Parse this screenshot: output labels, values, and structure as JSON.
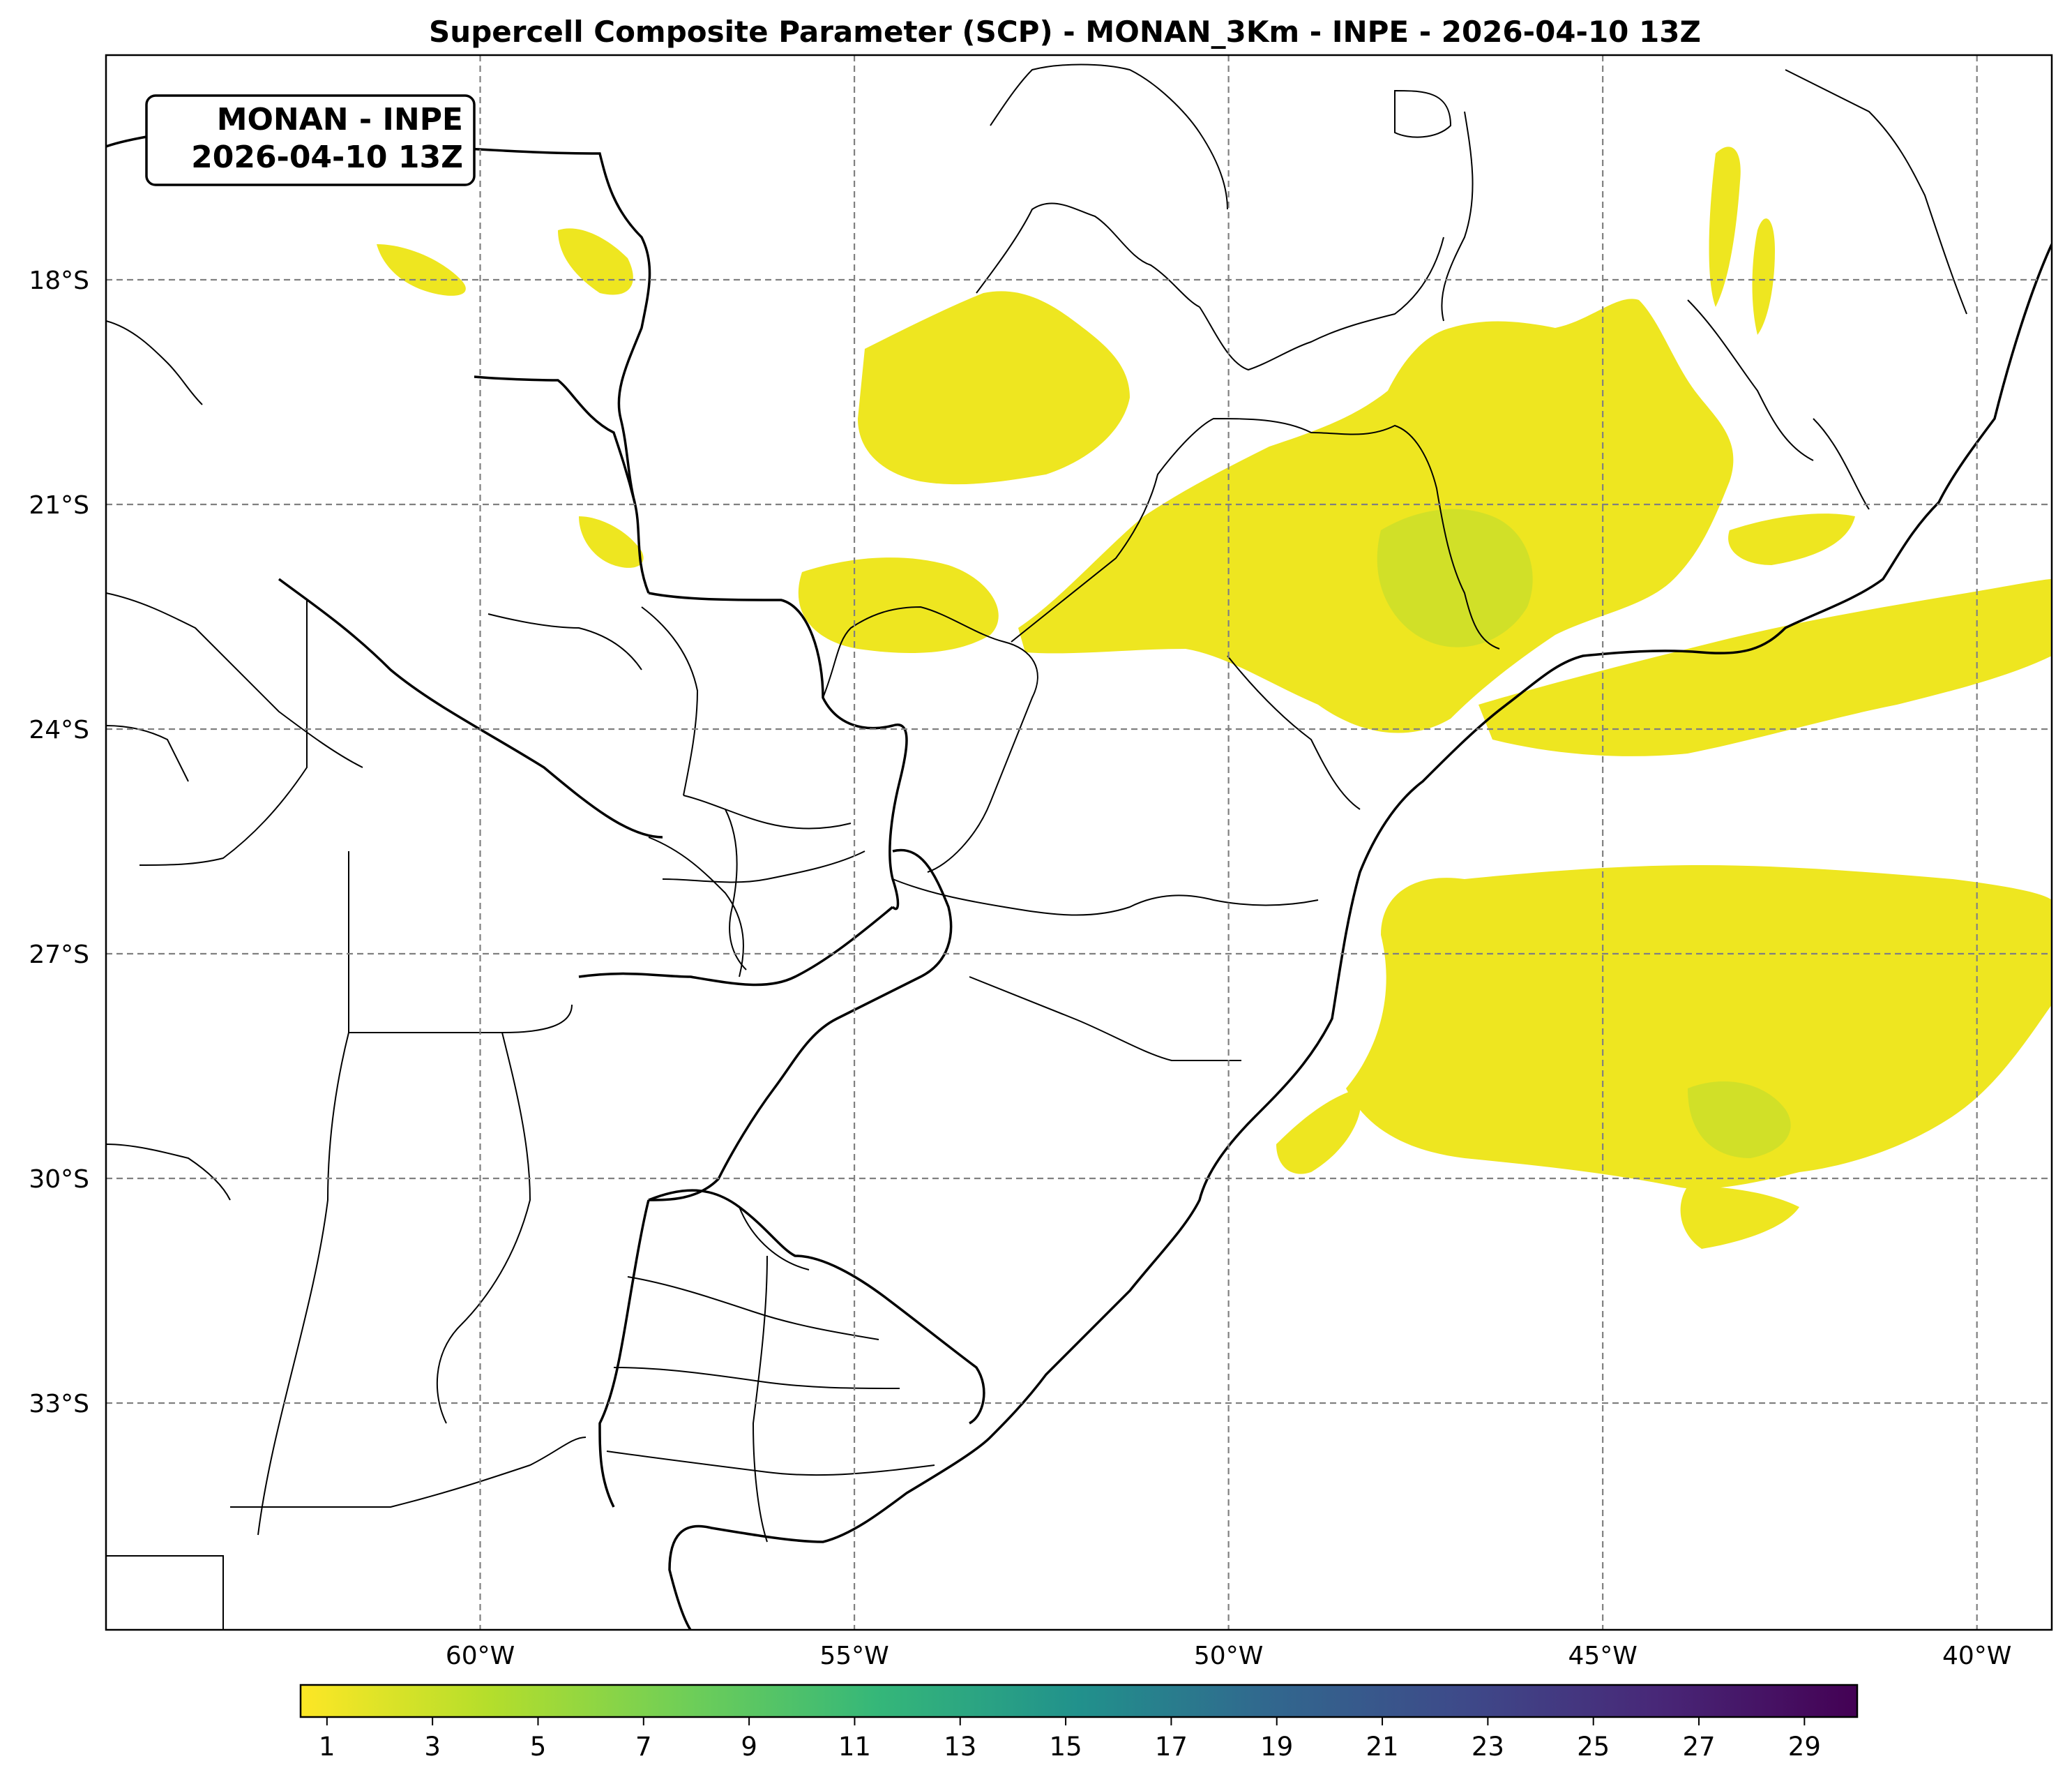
{
  "title": "Supercell Composite Parameter (SCP) - MONAN_3Km - INPE - 2026-04-10 13Z",
  "badge": {
    "line1": "MONAN - INPE",
    "line2": "2026-04-10 13Z"
  },
  "map": {
    "extent": {
      "lon_min": -65,
      "lon_max": -39,
      "lat_min": -36,
      "lat_max": -15
    },
    "lat_ticks": [
      {
        "value": -18,
        "label": "18°S"
      },
      {
        "value": -21,
        "label": "21°S"
      },
      {
        "value": -24,
        "label": "24°S"
      },
      {
        "value": -27,
        "label": "27°S"
      },
      {
        "value": -30,
        "label": "30°S"
      },
      {
        "value": -33,
        "label": "33°S"
      }
    ],
    "lon_ticks": [
      {
        "value": -60,
        "label": "60°W"
      },
      {
        "value": -55,
        "label": "55°W"
      },
      {
        "value": -50,
        "label": "50°W"
      },
      {
        "value": -45,
        "label": "45°W"
      },
      {
        "value": -40,
        "label": "40°W"
      }
    ],
    "gridlines": true,
    "field_color": "#eee620"
  },
  "colorbar": {
    "colormap": "viridis_r",
    "range": [
      0.5,
      30
    ],
    "ticks": [
      1,
      3,
      5,
      7,
      9,
      11,
      13,
      15,
      17,
      19,
      21,
      23,
      25,
      27,
      29
    ]
  }
}
